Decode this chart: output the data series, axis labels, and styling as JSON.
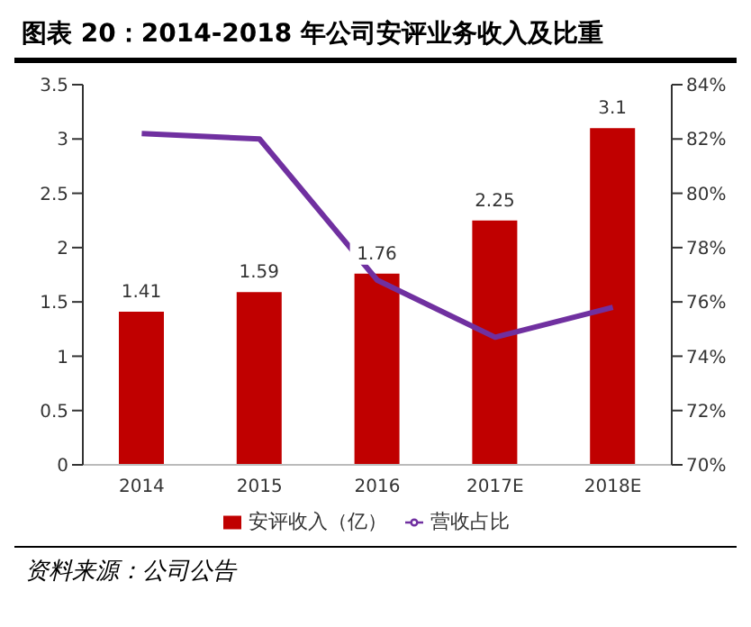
{
  "chart_data": {
    "type": "bar",
    "title": "图表 20：2014-2018 年公司安评业务收入及比重",
    "categories": [
      "2014",
      "2015",
      "2016",
      "2017E",
      "2018E"
    ],
    "series": [
      {
        "name": "安评收入（亿）",
        "color": "#c00000",
        "values": [
          1.41,
          1.59,
          1.76,
          2.25,
          3.1
        ],
        "value_labels": [
          "1.41",
          "1.59",
          "1.76",
          "2.25",
          "3.1"
        ]
      },
      {
        "name": "营收占比",
        "type": "line",
        "axis": "y2",
        "color": "#7030a0",
        "values": [
          82.2,
          82.0,
          76.8,
          74.7,
          75.8
        ]
      }
    ],
    "ylim": [
      0,
      3.5
    ],
    "yticks": [
      0,
      0.5,
      1,
      1.5,
      2,
      2.5,
      3,
      3.5
    ],
    "y2lim": [
      70,
      84
    ],
    "y2ticks": [
      {
        "value": 70,
        "label": "70%"
      },
      {
        "value": 72,
        "label": "72%"
      },
      {
        "value": 74,
        "label": "74%"
      },
      {
        "value": 76,
        "label": "76%"
      },
      {
        "value": 78,
        "label": "78%"
      },
      {
        "value": 80,
        "label": "80%"
      },
      {
        "value": 82,
        "label": "82%"
      },
      {
        "value": 84,
        "label": "84%"
      }
    ],
    "grid": false,
    "legend": "bottom",
    "marker": "none",
    "line_style": "solid",
    "annotations": [
      "资料来源：公司公告"
    ]
  }
}
